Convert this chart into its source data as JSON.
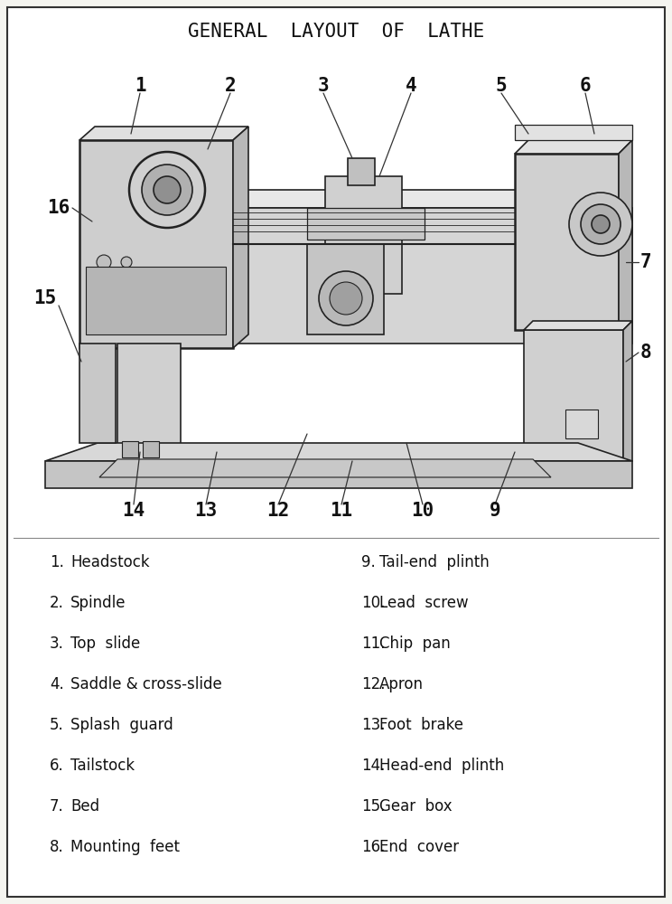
{
  "title": "GENERAL  LAYOUT  OF  LATHE",
  "background_color": "#f5f5f0",
  "border_color": "#333333",
  "text_color": "#111111",
  "title_fontsize": 15,
  "legend_fontsize": 12,
  "label_fontsize": 15,
  "parts_left": [
    {
      "num": "1.",
      "name": "Headstock"
    },
    {
      "num": "2.",
      "name": "Spindle"
    },
    {
      "num": "3.",
      "name": "Top  slide"
    },
    {
      "num": "4.",
      "name": "Saddle & cross-slide"
    },
    {
      "num": "5.",
      "name": "Splash  guard"
    },
    {
      "num": "6.",
      "name": "Tailstock"
    },
    {
      "num": "7.",
      "name": "Bed"
    },
    {
      "num": "8.",
      "name": "Mounting  feet"
    }
  ],
  "parts_right": [
    {
      "num": "9.",
      "name": "Tail-end  plinth"
    },
    {
      "num": "10.",
      "name": "Lead  screw"
    },
    {
      "num": "11.",
      "name": "Chip  pan"
    },
    {
      "num": "12.",
      "name": "Apron"
    },
    {
      "num": "13.",
      "name": "Foot  brake"
    },
    {
      "num": "14.",
      "name": "Head-end  plinth"
    },
    {
      "num": "15.",
      "name": "Gear  box"
    },
    {
      "num": "16.",
      "name": "End  cover"
    }
  ]
}
